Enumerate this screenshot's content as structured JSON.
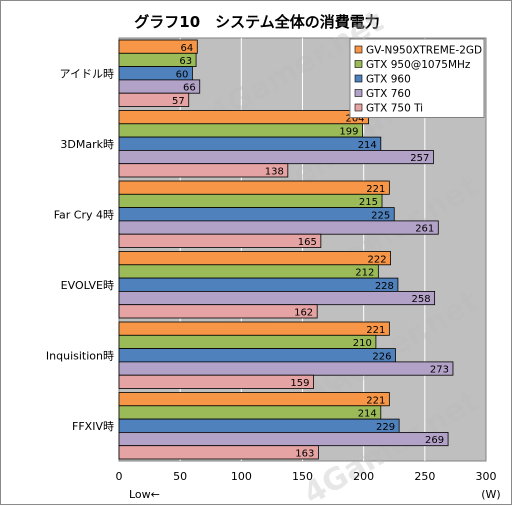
{
  "chart_data": {
    "type": "bar",
    "orientation": "horizontal",
    "title": "グラフ10　システム全体の消費電力",
    "categories": [
      "アイドル時",
      "3DMark時",
      "Far Cry 4時",
      "EVOLVE時",
      "Inquisition時",
      "FFXIV時"
    ],
    "series": [
      {
        "name": "GV-N950XTREME-2GD",
        "color": "#f79646",
        "values": [
          64,
          204,
          221,
          222,
          221,
          221
        ]
      },
      {
        "name": "GTX 950@1075MHz",
        "color": "#9bbb59",
        "values": [
          63,
          199,
          215,
          212,
          210,
          214
        ]
      },
      {
        "name": "GTX 960",
        "color": "#4f81bd",
        "values": [
          60,
          214,
          225,
          228,
          226,
          229
        ]
      },
      {
        "name": "GTX 760",
        "color": "#b3a2c7",
        "values": [
          66,
          257,
          261,
          258,
          273,
          269
        ]
      },
      {
        "name": "GTX 750 Ti",
        "color": "#e6a3a3",
        "values": [
          57,
          138,
          165,
          162,
          159,
          163
        ]
      }
    ],
    "xlim": [
      0,
      300
    ],
    "xticks": [
      0,
      50,
      100,
      150,
      200,
      250,
      300
    ],
    "xunit": "(W)",
    "direction_hint": "Low←",
    "grid": true,
    "legend_position": "top-right",
    "watermark": "4Gamer.net"
  }
}
